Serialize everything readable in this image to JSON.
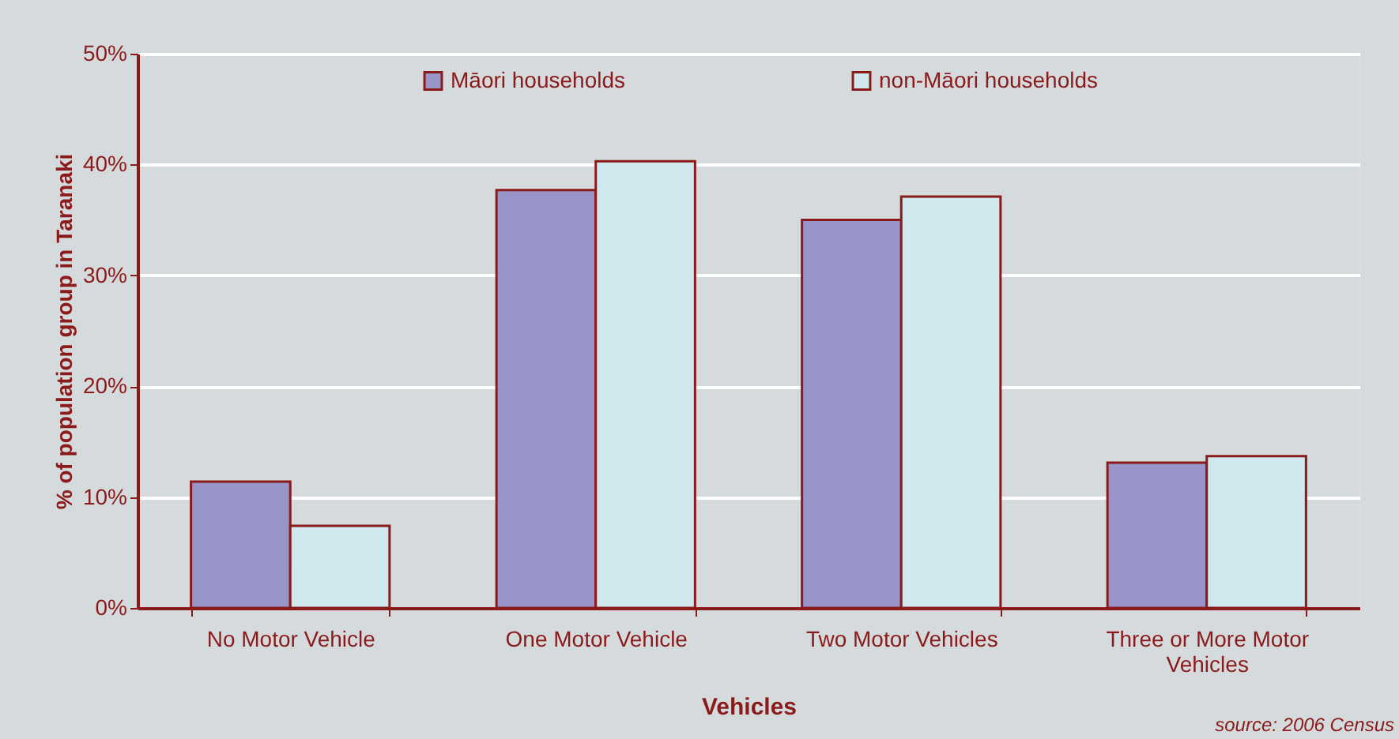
{
  "chart_data": {
    "type": "bar",
    "xlabel": "Vehicles",
    "ylabel": "% of population group in Taranaki",
    "categories": [
      "No Motor Vehicle",
      "One Motor Vehicle",
      "Two Motor Vehicles",
      "Three or More Motor Vehicles"
    ],
    "series": [
      {
        "name": "Māori households",
        "color": "#9995c8",
        "values": [
          11.4,
          37.7,
          35.0,
          13.1
        ]
      },
      {
        "name": "non-Māori households",
        "color": "#cfe9ef",
        "values": [
          7.4,
          40.3,
          37.1,
          13.7
        ]
      }
    ],
    "ylim": [
      0,
      50
    ],
    "yticks": [
      {
        "value": 0,
        "label": "0%"
      },
      {
        "value": 10,
        "label": "10%"
      },
      {
        "value": 20,
        "label": "20%"
      },
      {
        "value": 30,
        "label": "30%"
      },
      {
        "value": 40,
        "label": "40%"
      },
      {
        "value": 50,
        "label": "50%"
      }
    ],
    "grid": "y",
    "legend": "top",
    "annotations": [
      "source:  2006 Census"
    ]
  }
}
